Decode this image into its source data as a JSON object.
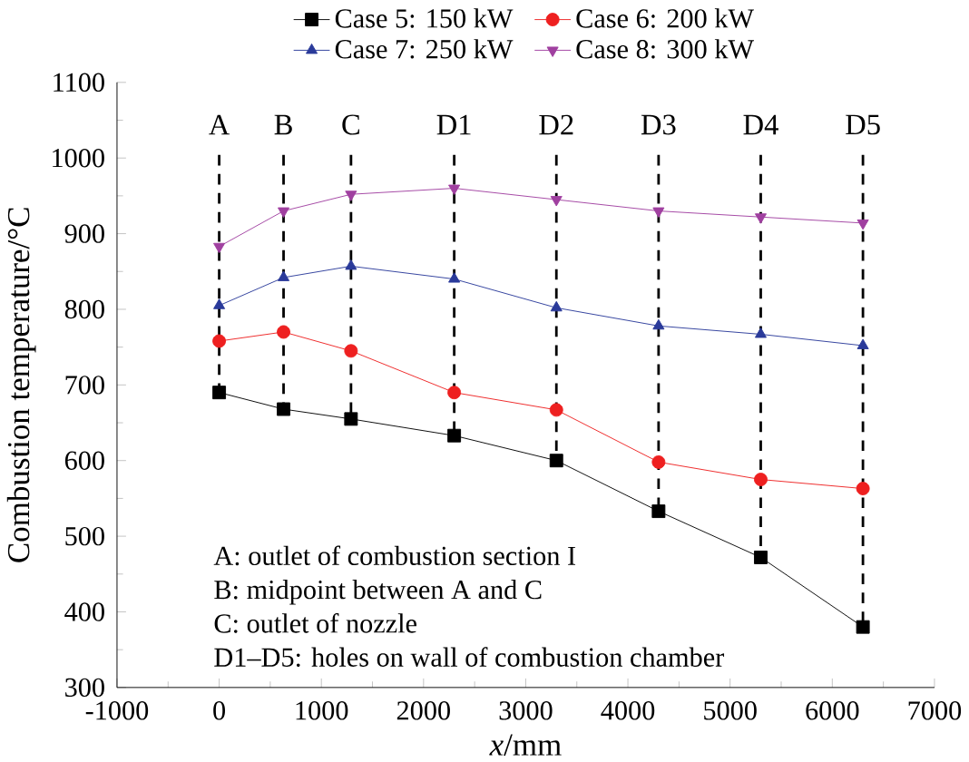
{
  "chart_data": {
    "type": "line",
    "xlabel": "*x*/mm",
    "ylabel": "Combustion temperature/°C",
    "x": [
      0,
      630,
      1290,
      2300,
      3300,
      4300,
      5300,
      6300
    ],
    "series": [
      {
        "name": "Case 5: 150 kW",
        "color": "#000000",
        "marker": "square",
        "values": [
          690,
          668,
          655,
          633,
          600,
          533,
          472,
          380
        ]
      },
      {
        "name": "Case 6: 200 kW",
        "color": "#ee2020",
        "marker": "circle",
        "values": [
          758,
          770,
          745,
          690,
          667,
          598,
          575,
          563
        ]
      },
      {
        "name": "Case 7: 250 kW",
        "color": "#2a3a9a",
        "marker": "triangle",
        "values": [
          805,
          842,
          857,
          840,
          802,
          778,
          767,
          752
        ]
      },
      {
        "name": "Case 8: 300 kW",
        "color": "#a040a0",
        "marker": "triangle down",
        "values": [
          883,
          930,
          952,
          960,
          945,
          930,
          922,
          914
        ]
      }
    ],
    "xlim": [
      -1000,
      7000
    ],
    "xticks": [
      -1000,
      0,
      1000,
      2000,
      3000,
      4000,
      5000,
      6000,
      7000
    ],
    "ylim": [
      300,
      1100
    ],
    "yticks": [
      300,
      400,
      500,
      600,
      700,
      800,
      900,
      1000,
      1100
    ],
    "ref_lines": [
      {
        "axis": "x",
        "value": 0,
        "label": "A",
        "line_style": "dashed",
        "color": "#000000"
      },
      {
        "axis": "x",
        "value": 630,
        "label": "B",
        "line_style": "dashed",
        "color": "#000000"
      },
      {
        "axis": "x",
        "value": 1290,
        "label": "C",
        "line_style": "dashed",
        "color": "#000000"
      },
      {
        "axis": "x",
        "value": 2300,
        "label": "D1",
        "line_style": "dashed",
        "color": "#000000"
      },
      {
        "axis": "x",
        "value": 3300,
        "label": "D2",
        "line_style": "dashed",
        "color": "#000000"
      },
      {
        "axis": "x",
        "value": 4300,
        "label": "D3",
        "line_style": "dashed",
        "color": "#000000"
      },
      {
        "axis": "x",
        "value": 5300,
        "label": "D4",
        "line_style": "dashed",
        "color": "#000000"
      },
      {
        "axis": "x",
        "value": 6300,
        "label": "D5",
        "line_style": "dashed",
        "color": "#000000"
      }
    ],
    "annotations": [
      "A: outlet of combustion section I",
      "B: midpoint between A and C",
      "C: outlet of nozzle",
      "D1–D5: holes on wall of combustion chamber"
    ],
    "legend": "top",
    "grid": false
  }
}
